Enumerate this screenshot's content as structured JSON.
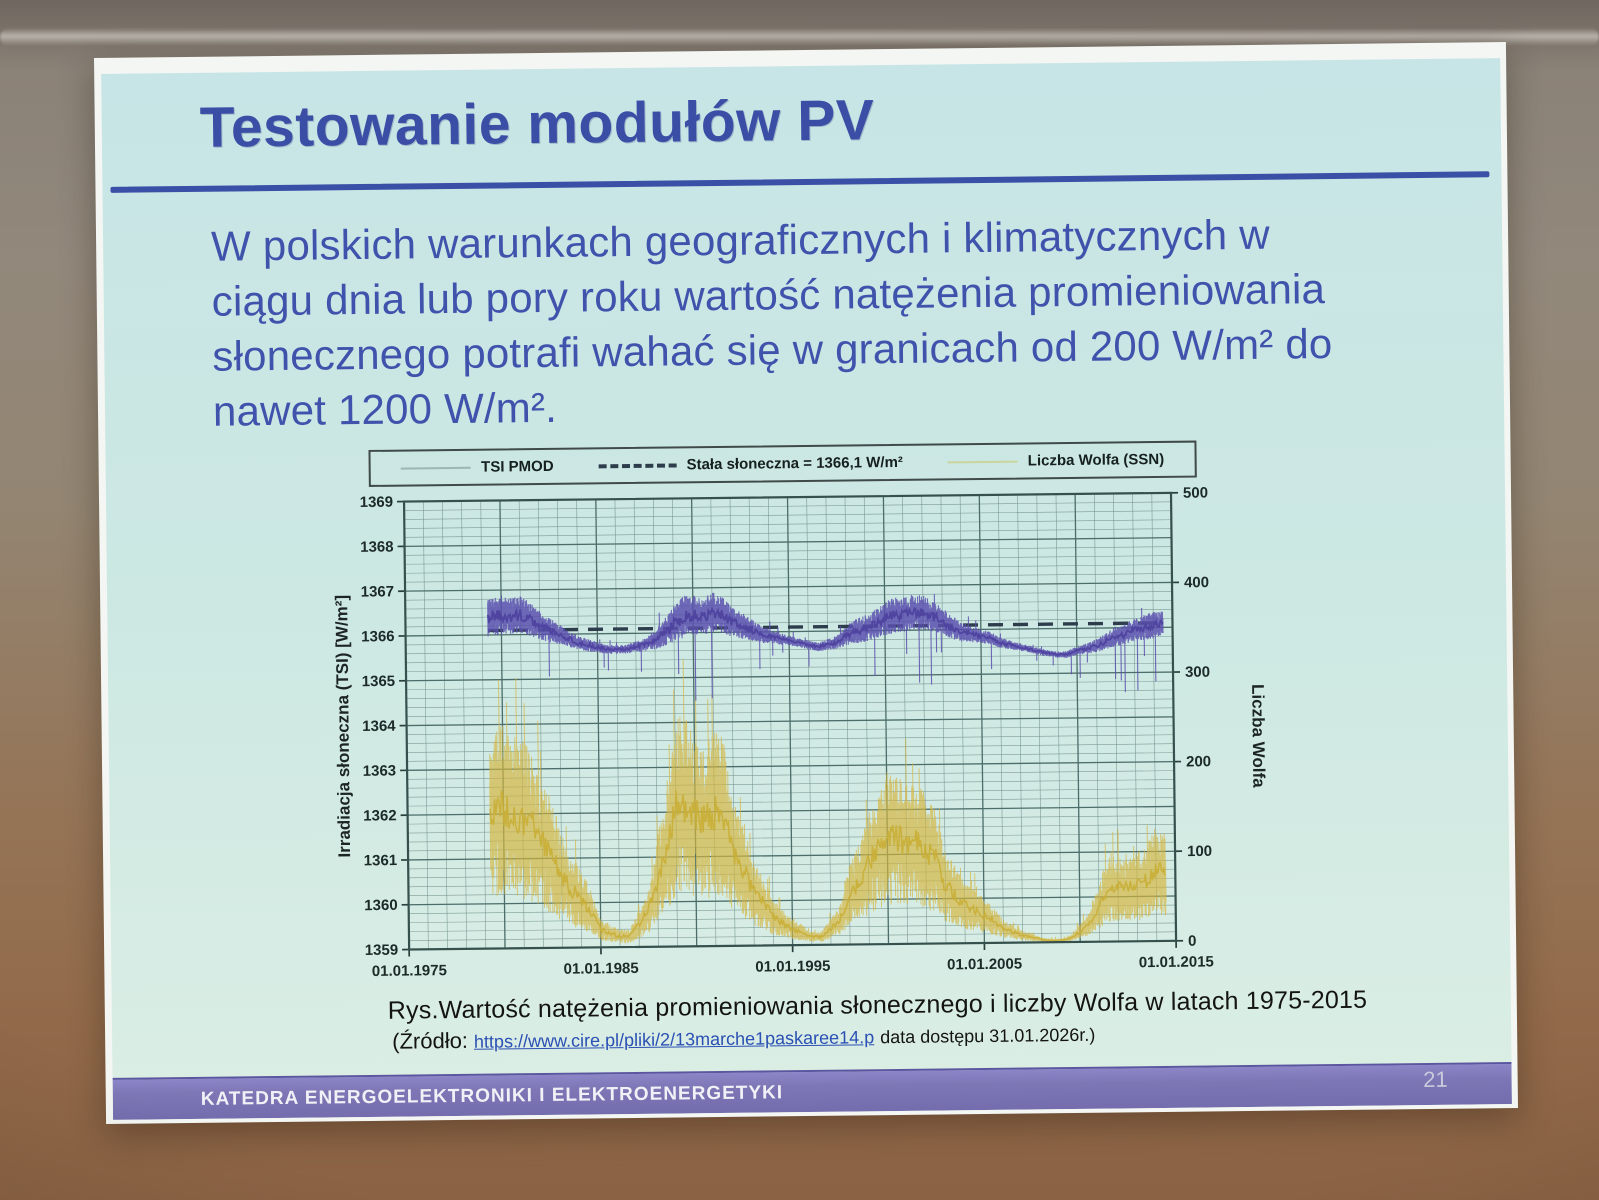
{
  "slide": {
    "title": "Testowanie modułów PV",
    "paragraph_lines": [
      "W polskich warunkach geograficznych i klimatycznych w",
      "ciągu dnia lub pory roku wartość natężenia promieniowania",
      "słonecznego potrafi wahać się w granicach od 200 W/m² do",
      "nawet 1200 W/m²."
    ],
    "caption": "Rys.Wartość natężenia promieniowania słonecznego i liczby Wolfa w latach 1975-2015",
    "source": {
      "prefix": "(Źródło:",
      "link": "https://www.cire.pl/pliki/2/13marche1paskaree14.p",
      "suffix": "data dostępu 31.01.2026r.)"
    },
    "footer": "KATEDRA ENERGOELEKTRONIKI I ELEKTROENERGETYKI",
    "page_number": "21",
    "colors": {
      "background": "#cde8e3",
      "title_text": "#3a4ea6",
      "body_text": "#4053ac",
      "rule": "#3a4fa6",
      "footer_bar": "#7d77b6"
    }
  },
  "chart_data": {
    "type": "line",
    "title": "",
    "legend": [
      {
        "swatch": "solid",
        "color": "#9eb6b2",
        "label": "TSI PMOD"
      },
      {
        "swatch": "dashed",
        "color": "#2e3d4c",
        "label": "Stała słoneczna = 1366,1 W/m²"
      },
      {
        "swatch": "solid",
        "color": "#ccd49e",
        "label": "Liczba Wolfa (SSN)"
      }
    ],
    "x_axis": {
      "range_years": [
        1975,
        2015
      ],
      "tick_years": [
        1975,
        1985,
        1995,
        2005,
        2015
      ],
      "tick_labels": [
        "01.01.1975",
        "01.01.1985",
        "01.01.1995",
        "01.01.2005",
        "01.01.2015"
      ]
    },
    "y_left": {
      "label": "Irradiacja słoneczna (TSI) [W/m²]",
      "range": [
        1359,
        1369
      ],
      "ticks": [
        1369,
        1368,
        1367,
        1366,
        1365,
        1364,
        1363,
        1362,
        1361,
        1360,
        1359
      ],
      "minor_step": 0.2
    },
    "y_right": {
      "label": "Liczba Wolfa",
      "range": [
        0,
        500
      ],
      "ticks": [
        500,
        400,
        300,
        200,
        100,
        0
      ]
    },
    "solar_constant": {
      "label": "Stała słoneczna",
      "value_wm2": 1366.1,
      "color": "#2e3d4c",
      "span_years": [
        1979.3,
        2014.5
      ]
    },
    "series": [
      {
        "name": "TSI PMOD",
        "axis": "left",
        "color": "#5b50ae",
        "x_start_year": 1979.0,
        "x_step_years": 0.5,
        "mean": [
          1366.35,
          1366.4,
          1366.45,
          1366.4,
          1366.45,
          1366.35,
          1366.2,
          1366.1,
          1366.0,
          1365.9,
          1365.8,
          1365.75,
          1365.7,
          1365.65,
          1365.65,
          1365.65,
          1365.7,
          1365.75,
          1365.85,
          1366.0,
          1366.2,
          1366.35,
          1366.4,
          1366.35,
          1366.45,
          1366.4,
          1366.25,
          1366.15,
          1366.05,
          1365.95,
          1365.9,
          1365.85,
          1365.8,
          1365.75,
          1365.7,
          1365.65,
          1365.7,
          1365.75,
          1365.9,
          1366.0,
          1366.05,
          1366.15,
          1366.25,
          1366.35,
          1366.35,
          1366.4,
          1366.4,
          1366.3,
          1366.2,
          1366.05,
          1365.95,
          1365.9,
          1365.85,
          1365.8,
          1365.7,
          1365.65,
          1365.6,
          1365.55,
          1365.5,
          1365.45,
          1365.42,
          1365.42,
          1365.5,
          1365.55,
          1365.6,
          1365.7,
          1365.8,
          1365.85,
          1365.95,
          1366.0,
          1366.05,
          1366.1
        ],
        "scatter": [
          0.4,
          0.42,
          0.45,
          0.42,
          0.42,
          0.38,
          0.32,
          0.28,
          0.22,
          0.18,
          0.15,
          0.14,
          0.12,
          0.1,
          0.1,
          0.1,
          0.12,
          0.15,
          0.22,
          0.3,
          0.42,
          0.48,
          0.45,
          0.42,
          0.45,
          0.42,
          0.35,
          0.3,
          0.25,
          0.2,
          0.16,
          0.14,
          0.12,
          0.1,
          0.1,
          0.1,
          0.12,
          0.15,
          0.22,
          0.28,
          0.3,
          0.33,
          0.38,
          0.4,
          0.38,
          0.4,
          0.38,
          0.34,
          0.3,
          0.26,
          0.22,
          0.18,
          0.16,
          0.14,
          0.12,
          0.1,
          0.09,
          0.08,
          0.08,
          0.07,
          0.07,
          0.08,
          0.1,
          0.12,
          0.15,
          0.18,
          0.22,
          0.24,
          0.26,
          0.28,
          0.3,
          0.28
        ]
      },
      {
        "name": "Liczba Wolfa (SSN)",
        "axis": "right",
        "color": "#d4b63e",
        "x_start_year": 1979.0,
        "x_step_years": 0.5,
        "mean": [
          150,
          160,
          155,
          150,
          145,
          140,
          115,
          105,
          80,
          65,
          55,
          40,
          20,
          16,
          12,
          12,
          25,
          40,
          75,
          110,
          160,
          160,
          145,
          140,
          150,
          145,
          100,
          85,
          60,
          48,
          32,
          25,
          18,
          14,
          9,
          9,
          18,
          28,
          55,
          70,
          90,
          105,
          120,
          120,
          110,
          115,
          105,
          95,
          65,
          55,
          42,
          38,
          30,
          25,
          16,
          12,
          8,
          6,
          3,
          2,
          2,
          4,
          12,
          20,
          40,
          60,
          60,
          58,
          62,
          68,
          80,
          75
        ],
        "scatter": [
          82,
          88,
          85,
          82,
          80,
          77,
          63,
          58,
          44,
          36,
          30,
          22,
          11,
          9,
          7,
          7,
          14,
          22,
          41,
          60,
          88,
          88,
          80,
          77,
          82,
          80,
          55,
          47,
          33,
          26,
          18,
          14,
          10,
          8,
          5,
          5,
          10,
          15,
          30,
          38,
          50,
          58,
          66,
          66,
          60,
          63,
          58,
          52,
          36,
          30,
          23,
          21,
          17,
          14,
          9,
          7,
          5,
          4,
          2,
          2,
          2,
          3,
          7,
          11,
          22,
          33,
          33,
          32,
          34,
          37,
          44,
          41
        ]
      }
    ]
  }
}
